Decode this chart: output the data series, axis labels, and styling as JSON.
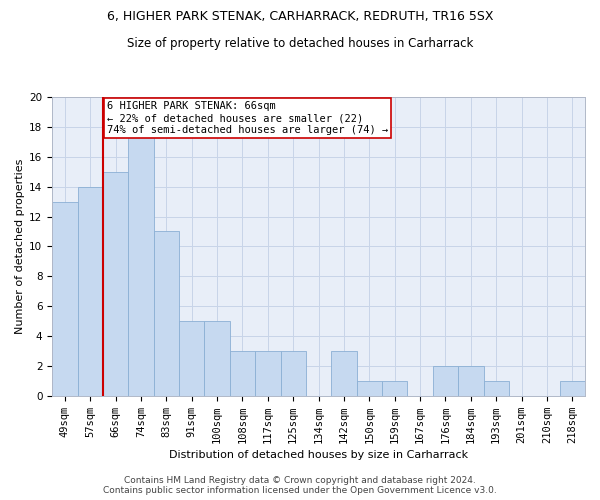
{
  "title": "6, HIGHER PARK STENAK, CARHARRACK, REDRUTH, TR16 5SX",
  "subtitle": "Size of property relative to detached houses in Carharrack",
  "xlabel": "Distribution of detached houses by size in Carharrack",
  "ylabel": "Number of detached properties",
  "categories": [
    "49sqm",
    "57sqm",
    "66sqm",
    "74sqm",
    "83sqm",
    "91sqm",
    "100sqm",
    "108sqm",
    "117sqm",
    "125sqm",
    "134sqm",
    "142sqm",
    "150sqm",
    "159sqm",
    "167sqm",
    "176sqm",
    "184sqm",
    "193sqm",
    "201sqm",
    "210sqm",
    "218sqm"
  ],
  "values": [
    13,
    14,
    15,
    18,
    11,
    5,
    5,
    3,
    3,
    3,
    0,
    3,
    1,
    1,
    0,
    2,
    2,
    1,
    0,
    0,
    1
  ],
  "bar_color": "#c6d9f0",
  "bar_edge_color": "#8bafd4",
  "vline_x": 1.5,
  "vline_color": "#cc0000",
  "annotation_text": "6 HIGHER PARK STENAK: 66sqm\n← 22% of detached houses are smaller (22)\n74% of semi-detached houses are larger (74) →",
  "annotation_box_color": "#ffffff",
  "annotation_box_edge": "#cc0000",
  "ylim": [
    0,
    20
  ],
  "yticks": [
    0,
    2,
    4,
    6,
    8,
    10,
    12,
    14,
    16,
    18,
    20
  ],
  "grid_color": "#c8d4e8",
  "background_color": "#e8eef8",
  "footnote": "Contains HM Land Registry data © Crown copyright and database right 2024.\nContains public sector information licensed under the Open Government Licence v3.0.",
  "title_fontsize": 9,
  "subtitle_fontsize": 8.5,
  "xlabel_fontsize": 8,
  "ylabel_fontsize": 8,
  "tick_fontsize": 7.5,
  "annotation_fontsize": 7.5,
  "footnote_fontsize": 6.5
}
